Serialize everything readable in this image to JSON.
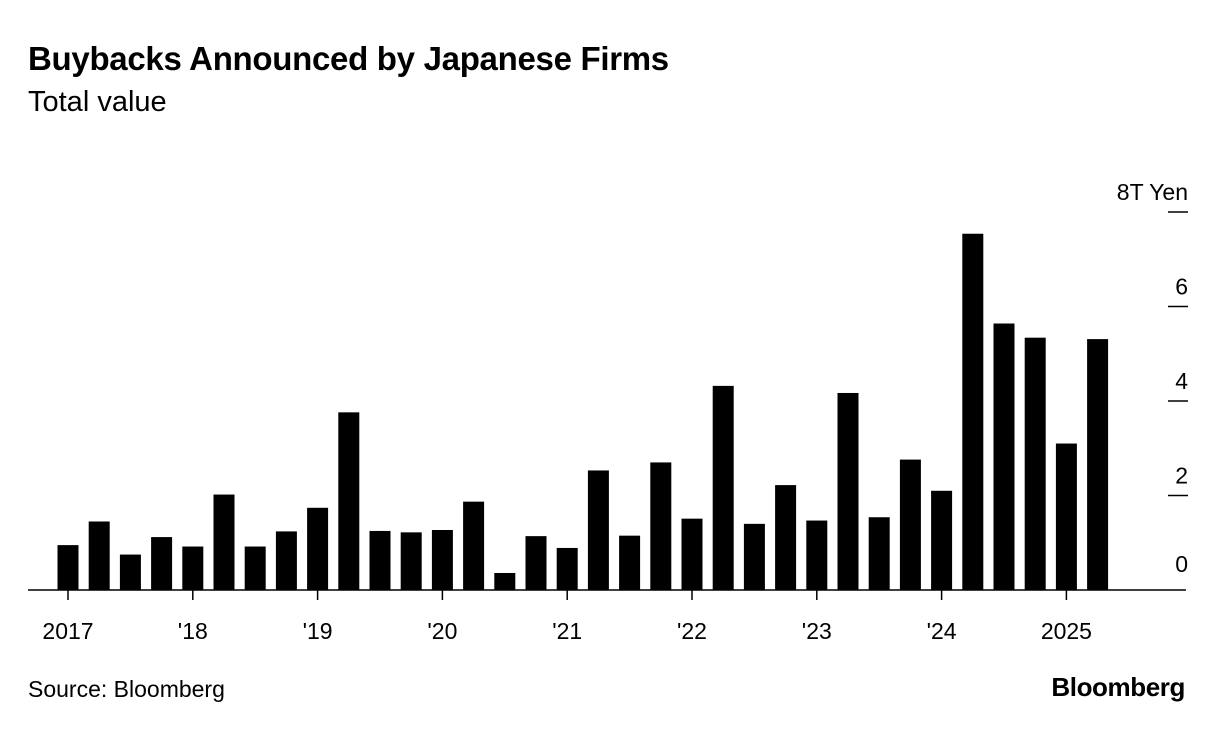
{
  "title": "Buybacks Announced by Japanese Firms",
  "subtitle": "Total value",
  "source": "Source: Bloomberg",
  "logo_text": "Bloomberg",
  "colors": {
    "bar": "#000000",
    "background": "#ffffff",
    "axis": "#000000"
  },
  "chart_data": {
    "type": "bar",
    "title": "Buybacks Announced by Japanese Firms",
    "subtitle": "Total value",
    "ylabel": "",
    "y_unit_label": "8T Yen",
    "ylim": [
      0,
      8
    ],
    "y_ticks": [
      0,
      2,
      4,
      6,
      8
    ],
    "y_tick_labels": [
      "0",
      "2",
      "4",
      "6",
      "8T Yen"
    ],
    "y_axis_side": "right",
    "grid": false,
    "x_tick_labels": [
      {
        "label": "2017",
        "index": 1
      },
      {
        "label": "'18",
        "index": 5
      },
      {
        "label": "'19",
        "index": 9
      },
      {
        "label": "'20",
        "index": 13
      },
      {
        "label": "'21",
        "index": 17
      },
      {
        "label": "'22",
        "index": 21
      },
      {
        "label": "'23",
        "index": 25
      },
      {
        "label": "'24",
        "index": 29
      },
      {
        "label": "2025",
        "index": 33
      }
    ],
    "categories": [
      "2017 Q1",
      "2017 Q2",
      "2017 Q3",
      "2017 Q4",
      "2018 Q1",
      "2018 Q2",
      "2018 Q3",
      "2018 Q4",
      "2019 Q1",
      "2019 Q2",
      "2019 Q3",
      "2019 Q4",
      "2020 Q1",
      "2020 Q2",
      "2020 Q3",
      "2020 Q4",
      "2021 Q1",
      "2021 Q2",
      "2021 Q3",
      "2021 Q4",
      "2022 Q1",
      "2022 Q2",
      "2022 Q3",
      "2022 Q4",
      "2023 Q1",
      "2023 Q2",
      "2023 Q3",
      "2023 Q4",
      "2024 Q1",
      "2024 Q2",
      "2024 Q3",
      "2024 Q4",
      "2025 Q1",
      "2025 Q2"
    ],
    "values": [
      0.95,
      1.45,
      0.75,
      1.12,
      0.92,
      2.02,
      0.92,
      1.24,
      1.74,
      3.76,
      1.25,
      1.22,
      1.27,
      1.87,
      0.36,
      1.14,
      0.89,
      2.53,
      1.15,
      2.7,
      1.51,
      4.32,
      1.4,
      2.22,
      1.47,
      4.17,
      1.54,
      2.76,
      2.1,
      7.54,
      5.64,
      5.34,
      3.1,
      5.31
    ]
  }
}
